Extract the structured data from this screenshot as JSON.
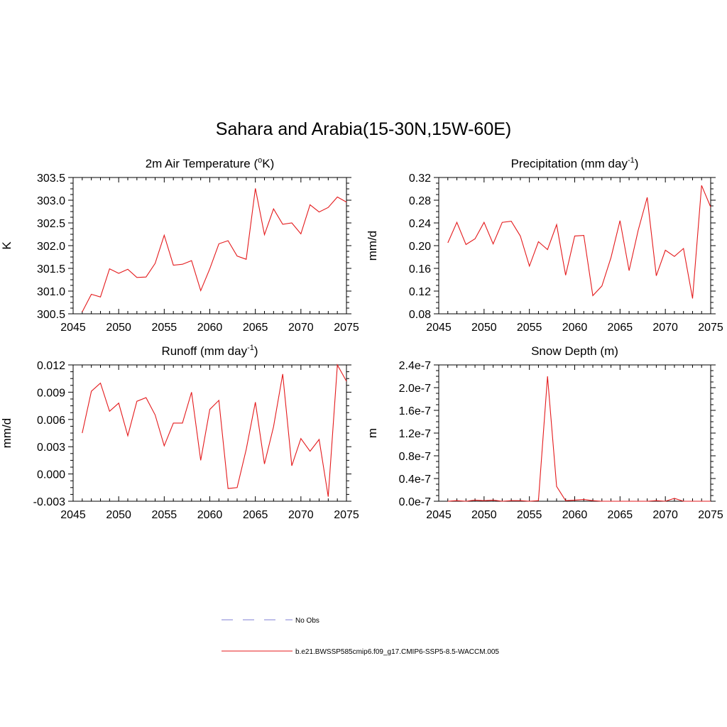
{
  "title": "Sahara and Arabia(15-30N,15W-60E)",
  "line_color": "#e41a1c",
  "obs_color": "#9999dd",
  "legend": {
    "obs_label": "No Obs",
    "model_label": "b.e21.BWSSP585cmip6.f09_g17.CMIP6-SSP5-8.5-WACCM.005"
  },
  "chart_data": [
    {
      "type": "line",
      "title": "2m Air Temperature (",
      "title_sup": "o",
      "title_tail": "K)",
      "ylabel": "K",
      "xlim": [
        2045,
        2075
      ],
      "ylim": [
        300.5,
        303.5
      ],
      "x_ticks": [
        2045,
        2050,
        2055,
        2060,
        2065,
        2070,
        2075
      ],
      "y_ticks": [
        "300.5",
        "301.0",
        "301.5",
        "302.0",
        "302.5",
        "303.0",
        "303.5"
      ],
      "x": [
        2046,
        2047,
        2048,
        2049,
        2050,
        2051,
        2052,
        2053,
        2054,
        2055,
        2056,
        2057,
        2058,
        2059,
        2060,
        2061,
        2062,
        2063,
        2064,
        2065,
        2066,
        2067,
        2068,
        2069,
        2070,
        2071,
        2072,
        2073,
        2074,
        2075
      ],
      "y": [
        300.54,
        300.93,
        300.87,
        301.49,
        301.39,
        301.48,
        301.3,
        301.31,
        301.61,
        302.23,
        301.57,
        301.59,
        301.67,
        301.01,
        301.49,
        302.04,
        302.11,
        301.77,
        301.7,
        303.26,
        302.24,
        302.81,
        302.47,
        302.5,
        302.26,
        302.9,
        302.74,
        302.84,
        303.07,
        302.96
      ]
    },
    {
      "type": "line",
      "title": "Precipitation (mm day",
      "title_sup": "-1",
      "title_tail": ")",
      "ylabel": "mm/d",
      "xlim": [
        2045,
        2075
      ],
      "ylim": [
        0.08,
        0.32
      ],
      "x_ticks": [
        2045,
        2050,
        2055,
        2060,
        2065,
        2070,
        2075
      ],
      "y_ticks": [
        "0.08",
        "0.12",
        "0.16",
        "0.20",
        "0.24",
        "0.28",
        "0.32"
      ],
      "x": [
        2046,
        2047,
        2048,
        2049,
        2050,
        2051,
        2052,
        2053,
        2054,
        2055,
        2056,
        2057,
        2058,
        2059,
        2060,
        2061,
        2062,
        2063,
        2064,
        2065,
        2066,
        2067,
        2068,
        2069,
        2070,
        2071,
        2072,
        2073,
        2074,
        2075
      ],
      "y": [
        0.205,
        0.241,
        0.202,
        0.212,
        0.241,
        0.203,
        0.241,
        0.243,
        0.217,
        0.164,
        0.207,
        0.193,
        0.237,
        0.148,
        0.217,
        0.218,
        0.112,
        0.129,
        0.179,
        0.244,
        0.156,
        0.227,
        0.285,
        0.147,
        0.192,
        0.181,
        0.195,
        0.107,
        0.306,
        0.268
      ]
    },
    {
      "type": "line",
      "title": "Runoff (mm day",
      "title_sup": "-1",
      "title_tail": ")",
      "ylabel": "mm/d",
      "xlim": [
        2045,
        2075
      ],
      "ylim": [
        -0.003,
        0.012
      ],
      "x_ticks": [
        2045,
        2050,
        2055,
        2060,
        2065,
        2070,
        2075
      ],
      "y_ticks": [
        "-0.003",
        "0.000",
        "0.003",
        "0.006",
        "0.009",
        "0.012"
      ],
      "x": [
        2046,
        2047,
        2048,
        2049,
        2050,
        2051,
        2052,
        2053,
        2054,
        2055,
        2056,
        2057,
        2058,
        2059,
        2060,
        2061,
        2062,
        2063,
        2064,
        2065,
        2066,
        2067,
        2068,
        2069,
        2070,
        2071,
        2072,
        2073,
        2074,
        2075
      ],
      "y": [
        0.0045,
        0.0091,
        0.01,
        0.0069,
        0.0078,
        0.0042,
        0.008,
        0.0084,
        0.0065,
        0.0031,
        0.0056,
        0.0056,
        0.009,
        0.0015,
        0.0071,
        0.0081,
        -0.0016,
        -0.0015,
        0.0027,
        0.0079,
        0.0011,
        0.0052,
        0.011,
        0.0009,
        0.0039,
        0.0025,
        0.0038,
        -0.0025,
        0.012,
        0.0102
      ]
    },
    {
      "type": "line",
      "title": "Snow Depth (m)",
      "title_sup": "",
      "title_tail": "",
      "ylabel": "m",
      "xlim": [
        2045,
        2075
      ],
      "ylim": [
        0.0,
        2.4e-07
      ],
      "x_ticks": [
        2045,
        2050,
        2055,
        2060,
        2065,
        2070,
        2075
      ],
      "y_ticks": [
        "0.0e-7",
        "0.4e-7",
        "0.8e-7",
        "1.2e-7",
        "1.6e-7",
        "2.0e-7",
        "2.4e-7"
      ],
      "x": [
        2046,
        2047,
        2048,
        2049,
        2050,
        2051,
        2052,
        2053,
        2054,
        2055,
        2056,
        2057,
        2058,
        2059,
        2060,
        2061,
        2062,
        2063,
        2064,
        2065,
        2066,
        2067,
        2068,
        2069,
        2070,
        2071,
        2072,
        2073,
        2074,
        2075
      ],
      "y": [
        0.0,
        1e-09,
        0.0,
        2e-09,
        1e-09,
        2e-09,
        0.0,
        1e-09,
        1e-09,
        0.0,
        1e-09,
        2.2e-07,
        2.6e-08,
        1e-09,
        2e-09,
        3e-09,
        1e-09,
        0.0,
        0.0,
        0.0,
        0.0,
        0.0,
        0.0,
        1e-09,
        0.0,
        5e-09,
        0.0,
        0.0,
        0.0,
        0.0
      ]
    }
  ]
}
